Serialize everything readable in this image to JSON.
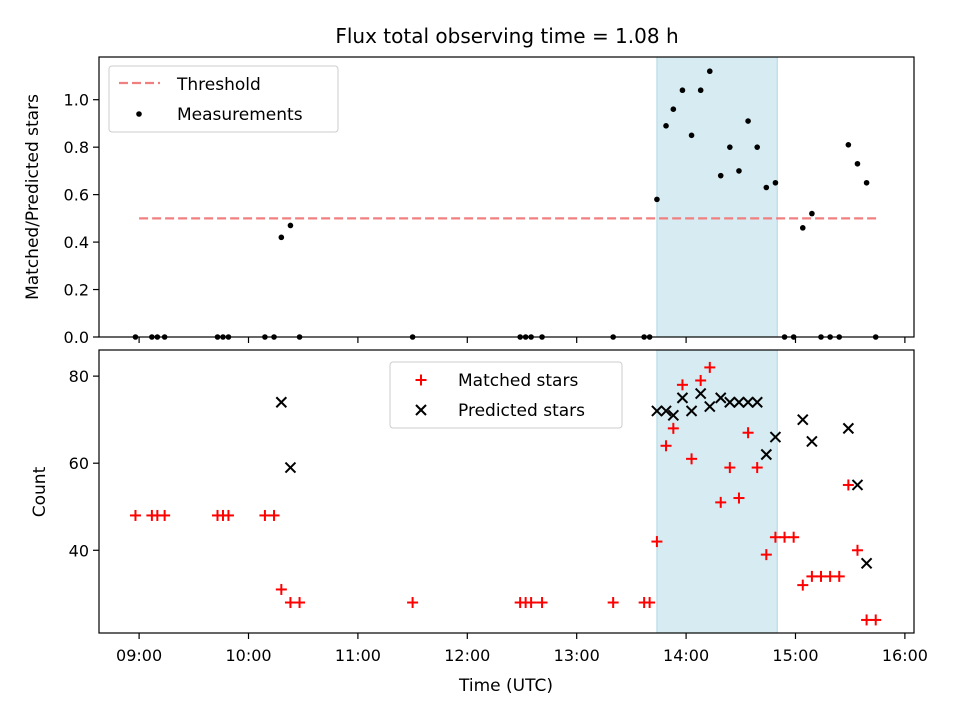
{
  "figure": {
    "title": "Flux total observing time = 1.08 h",
    "xlabel": "Time (UTC)",
    "x_tick_labels": [
      "09:00",
      "10:00",
      "11:00",
      "12:00",
      "13:00",
      "14:00",
      "15:00",
      "16:00"
    ],
    "highlight_span": {
      "start": "13:44",
      "end": "14:50",
      "color": "#add8e6"
    }
  },
  "chart_data": [
    {
      "type": "scatter",
      "title": "Flux total observing time = 1.08 h",
      "xlabel": "",
      "ylabel": "Matched/Predicted stars",
      "xlim": [
        "08:38",
        "16:05"
      ],
      "ylim": [
        0,
        1.18
      ],
      "y_ticks": [
        "0.0",
        "0.2",
        "0.4",
        "0.6",
        "0.8",
        "1.0"
      ],
      "legend_position": "top-left",
      "threshold": {
        "name": "Threshold",
        "value": 0.5,
        "x_start": "09:00",
        "x_end": "15:45",
        "color": "#f08080"
      },
      "series": [
        {
          "name": "Measurements",
          "color": "#000000",
          "marker": "dot",
          "points": [
            [
              "08:58",
              0
            ],
            [
              "09:07",
              0
            ],
            [
              "09:10",
              0
            ],
            [
              "09:14",
              0
            ],
            [
              "09:43",
              0
            ],
            [
              "09:46",
              0
            ],
            [
              "09:49",
              0
            ],
            [
              "10:09",
              0
            ],
            [
              "10:14",
              0
            ],
            [
              "10:18",
              0.42
            ],
            [
              "10:23",
              0.47
            ],
            [
              "10:28",
              0
            ],
            [
              "11:30",
              0
            ],
            [
              "12:29",
              0
            ],
            [
              "12:32",
              0
            ],
            [
              "12:35",
              0
            ],
            [
              "12:41",
              0
            ],
            [
              "13:20",
              0
            ],
            [
              "13:37",
              0
            ],
            [
              "13:40",
              0
            ],
            [
              "13:44",
              0.58
            ],
            [
              "13:49",
              0.89
            ],
            [
              "13:53",
              0.96
            ],
            [
              "13:58",
              1.04
            ],
            [
              "14:03",
              0.85
            ],
            [
              "14:08",
              1.04
            ],
            [
              "14:13",
              1.12
            ],
            [
              "14:19",
              0.68
            ],
            [
              "14:24",
              0.8
            ],
            [
              "14:29",
              0.7
            ],
            [
              "14:34",
              0.91
            ],
            [
              "14:39",
              0.8
            ],
            [
              "14:44",
              0.63
            ],
            [
              "14:49",
              0.65
            ],
            [
              "14:54",
              0
            ],
            [
              "14:59",
              0
            ],
            [
              "15:04",
              0.46
            ],
            [
              "15:09",
              0.52
            ],
            [
              "15:14",
              0
            ],
            [
              "15:19",
              0
            ],
            [
              "15:24",
              0
            ],
            [
              "15:29",
              0.81
            ],
            [
              "15:34",
              0.73
            ],
            [
              "15:39",
              0.65
            ],
            [
              "15:44",
              0
            ]
          ]
        }
      ]
    },
    {
      "type": "scatter",
      "title": "",
      "xlabel": "Time (UTC)",
      "ylabel": "Count",
      "xlim": [
        "08:38",
        "16:05"
      ],
      "ylim": [
        21,
        86
      ],
      "y_ticks": [
        "40",
        "60",
        "80"
      ],
      "legend_position": "top-center",
      "series": [
        {
          "name": "Matched stars",
          "color": "#ff0000",
          "marker": "plus",
          "points": [
            [
              "08:58",
              48
            ],
            [
              "09:07",
              48
            ],
            [
              "09:10",
              48
            ],
            [
              "09:14",
              48
            ],
            [
              "09:43",
              48
            ],
            [
              "09:46",
              48
            ],
            [
              "09:49",
              48
            ],
            [
              "10:09",
              48
            ],
            [
              "10:14",
              48
            ],
            [
              "10:18",
              31
            ],
            [
              "10:23",
              28
            ],
            [
              "10:28",
              28
            ],
            [
              "11:30",
              28
            ],
            [
              "12:29",
              28
            ],
            [
              "12:32",
              28
            ],
            [
              "12:35",
              28
            ],
            [
              "12:41",
              28
            ],
            [
              "13:20",
              28
            ],
            [
              "13:37",
              28
            ],
            [
              "13:40",
              28
            ],
            [
              "13:44",
              42
            ],
            [
              "13:49",
              64
            ],
            [
              "13:53",
              68
            ],
            [
              "13:58",
              78
            ],
            [
              "14:03",
              61
            ],
            [
              "14:08",
              79
            ],
            [
              "14:13",
              82
            ],
            [
              "14:19",
              51
            ],
            [
              "14:24",
              59
            ],
            [
              "14:29",
              52
            ],
            [
              "14:34",
              67
            ],
            [
              "14:39",
              59
            ],
            [
              "14:44",
              39
            ],
            [
              "14:49",
              43
            ],
            [
              "14:54",
              43
            ],
            [
              "14:59",
              43
            ],
            [
              "15:04",
              32
            ],
            [
              "15:09",
              34
            ],
            [
              "15:14",
              34
            ],
            [
              "15:19",
              34
            ],
            [
              "15:24",
              34
            ],
            [
              "15:29",
              55
            ],
            [
              "15:34",
              40
            ],
            [
              "15:39",
              24
            ],
            [
              "15:44",
              24
            ]
          ]
        },
        {
          "name": "Predicted stars",
          "color": "#000000",
          "marker": "x",
          "points": [
            [
              "10:18",
              74
            ],
            [
              "10:23",
              59
            ],
            [
              "13:44",
              72
            ],
            [
              "13:49",
              72
            ],
            [
              "13:53",
              71
            ],
            [
              "13:58",
              75
            ],
            [
              "14:03",
              72
            ],
            [
              "14:08",
              76
            ],
            [
              "14:13",
              73
            ],
            [
              "14:19",
              75
            ],
            [
              "14:24",
              74
            ],
            [
              "14:29",
              74
            ],
            [
              "14:34",
              74
            ],
            [
              "14:39",
              74
            ],
            [
              "14:44",
              62
            ],
            [
              "14:49",
              66
            ],
            [
              "15:04",
              70
            ],
            [
              "15:09",
              65
            ],
            [
              "15:29",
              68
            ],
            [
              "15:34",
              55
            ],
            [
              "15:39",
              37
            ]
          ]
        }
      ]
    }
  ]
}
